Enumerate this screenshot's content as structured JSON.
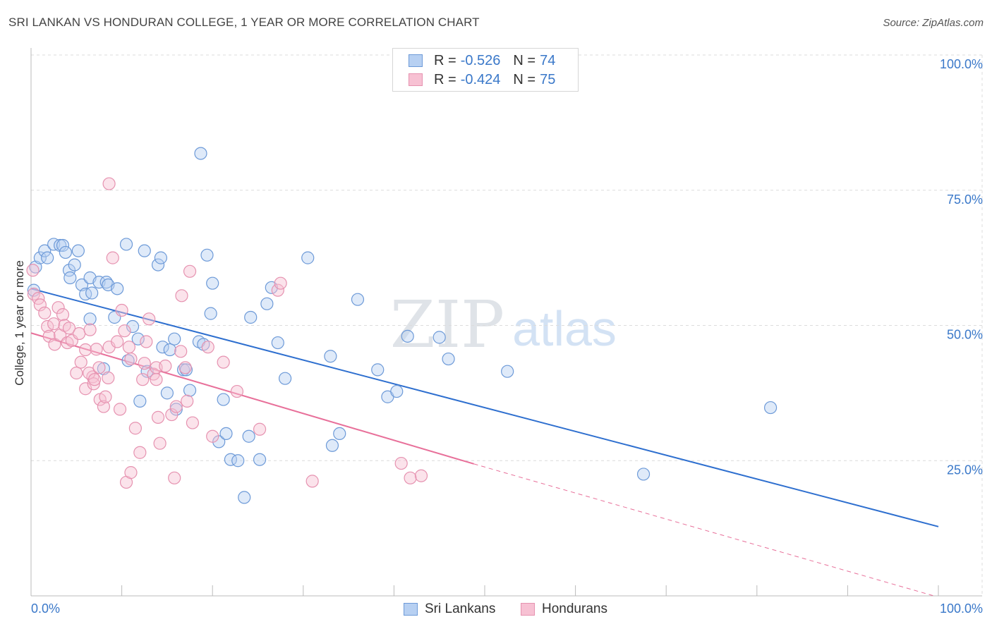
{
  "header": {
    "title": "SRI LANKAN VS HONDURAN COLLEGE, 1 YEAR OR MORE CORRELATION CHART",
    "source": "Source: ZipAtlas.com"
  },
  "watermark": {
    "zip": "ZIP",
    "atlas": "atlas"
  },
  "legend": {
    "r_label": "R =",
    "n_label": "N =",
    "series": [
      {
        "name": "Sri Lankans",
        "r": "-0.526",
        "n": "74",
        "fill": "#b7d0f2",
        "stroke": "#6d9ad8"
      },
      {
        "name": "Hondurans",
        "r": "-0.424",
        "n": "75",
        "fill": "#f7c1d3",
        "stroke": "#e692b0"
      }
    ]
  },
  "chart_data": {
    "type": "scatter",
    "title": "SRI LANKAN VS HONDURAN COLLEGE, 1 YEAR OR MORE CORRELATION CHART",
    "xlabel": "",
    "ylabel": "College, 1 year or more",
    "xlim": [
      0,
      100
    ],
    "ylim": [
      0,
      100
    ],
    "x_tick_labels": {
      "left": "0.0%",
      "right": "100.0%"
    },
    "y_ticks": [
      {
        "value": 25,
        "label": "25.0%"
      },
      {
        "value": 50,
        "label": "50.0%"
      },
      {
        "value": 75,
        "label": "75.0%"
      },
      {
        "value": 100,
        "label": "100.0%"
      }
    ],
    "grid": true,
    "colors": {
      "blue": "#3a78c9",
      "blue_line": "#2e6fcf",
      "pink": "#e8709a",
      "tick_text": "#3a78c9"
    },
    "series": [
      {
        "name": "Sri Lankans",
        "trend": {
          "x0": 0,
          "y0": 56.8,
          "x1": 100,
          "y1": 12.8
        },
        "points": [
          [
            0.3,
            56.5
          ],
          [
            0.5,
            60.8
          ],
          [
            1,
            62.5
          ],
          [
            1.5,
            63.8
          ],
          [
            1.8,
            62.5
          ],
          [
            2.5,
            65
          ],
          [
            3.2,
            64.8
          ],
          [
            3.5,
            64.8
          ],
          [
            3.8,
            63.5
          ],
          [
            4.2,
            60.2
          ],
          [
            4.3,
            58.8
          ],
          [
            4.8,
            61.2
          ],
          [
            5.2,
            63.8
          ],
          [
            5.6,
            57.5
          ],
          [
            6,
            55.8
          ],
          [
            6.5,
            58.8
          ],
          [
            6.7,
            56
          ],
          [
            6.5,
            51.2
          ],
          [
            7.5,
            58
          ],
          [
            8.3,
            58
          ],
          [
            8.5,
            57.5
          ],
          [
            9.5,
            56.8
          ],
          [
            8,
            42
          ],
          [
            9.2,
            51.5
          ],
          [
            10.5,
            65
          ],
          [
            10.7,
            43.5
          ],
          [
            11.2,
            49.8
          ],
          [
            11.8,
            47.5
          ],
          [
            12,
            36
          ],
          [
            12.5,
            63.8
          ],
          [
            12.8,
            41.5
          ],
          [
            14,
            61.2
          ],
          [
            14.3,
            62.5
          ],
          [
            14.5,
            46
          ],
          [
            15,
            37.5
          ],
          [
            15.3,
            45.5
          ],
          [
            15.8,
            47.5
          ],
          [
            16,
            34.5
          ],
          [
            16.8,
            41.8
          ],
          [
            17.1,
            41.8
          ],
          [
            17.5,
            38
          ],
          [
            18.5,
            47
          ],
          [
            18.7,
            81.8
          ],
          [
            19,
            46.5
          ],
          [
            19.4,
            63
          ],
          [
            19.8,
            52.2
          ],
          [
            20,
            57.8
          ],
          [
            20.7,
            28.5
          ],
          [
            21.2,
            36.3
          ],
          [
            21.5,
            30
          ],
          [
            22,
            25.2
          ],
          [
            22.8,
            25
          ],
          [
            23.5,
            18.2
          ],
          [
            24,
            29.5
          ],
          [
            24.2,
            51.5
          ],
          [
            25.2,
            25.2
          ],
          [
            26,
            54
          ],
          [
            26.5,
            57
          ],
          [
            27.2,
            46.8
          ],
          [
            28,
            40.2
          ],
          [
            30.5,
            62.5
          ],
          [
            33,
            44.3
          ],
          [
            33.2,
            27.8
          ],
          [
            34,
            30
          ],
          [
            36,
            54.8
          ],
          [
            38.2,
            41.8
          ],
          [
            39.3,
            36.8
          ],
          [
            40.3,
            37.8
          ],
          [
            41.5,
            48
          ],
          [
            45,
            47.8
          ],
          [
            46,
            43.8
          ],
          [
            52.5,
            41.5
          ],
          [
            81.5,
            34.8
          ],
          [
            67.5,
            22.5
          ]
        ]
      },
      {
        "name": "Hondurans",
        "trend": {
          "x0": 0,
          "y0": 48.6,
          "x1": 48.8,
          "y1": 24.4,
          "dash_x1": 99.5,
          "dash_y1": 0
        },
        "points": [
          [
            0.2,
            60.2
          ],
          [
            0.3,
            55.8
          ],
          [
            0.8,
            55
          ],
          [
            1,
            53.8
          ],
          [
            1.5,
            52.3
          ],
          [
            1.8,
            49.8
          ],
          [
            2,
            48
          ],
          [
            2.5,
            50.3
          ],
          [
            2.6,
            46.5
          ],
          [
            3,
            53.3
          ],
          [
            3.2,
            48.2
          ],
          [
            3.5,
            52
          ],
          [
            3.7,
            50
          ],
          [
            4,
            46.8
          ],
          [
            4.5,
            47.2
          ],
          [
            4.2,
            49.5
          ],
          [
            5,
            41.2
          ],
          [
            5.3,
            48.5
          ],
          [
            5.5,
            43.2
          ],
          [
            6,
            45.5
          ],
          [
            6,
            38.3
          ],
          [
            6.5,
            49.2
          ],
          [
            6.8,
            40.5
          ],
          [
            6.4,
            41.2
          ],
          [
            6.9,
            39.2
          ],
          [
            7,
            40
          ],
          [
            7.2,
            45.6
          ],
          [
            7.5,
            42.2
          ],
          [
            7.6,
            36.3
          ],
          [
            8,
            35
          ],
          [
            8.2,
            36.8
          ],
          [
            8.5,
            40.3
          ],
          [
            8.6,
            46
          ],
          [
            8.6,
            76.2
          ],
          [
            9,
            62.5
          ],
          [
            9.5,
            47
          ],
          [
            9.8,
            34.5
          ],
          [
            10,
            52.8
          ],
          [
            10.3,
            49
          ],
          [
            10.8,
            46
          ],
          [
            11,
            43.8
          ],
          [
            10.5,
            21
          ],
          [
            11,
            22.8
          ],
          [
            11.5,
            31
          ],
          [
            12,
            26.5
          ],
          [
            12.3,
            40
          ],
          [
            12.5,
            43
          ],
          [
            12.7,
            47
          ],
          [
            13,
            51.2
          ],
          [
            13.5,
            41
          ],
          [
            13.8,
            40
          ],
          [
            13.8,
            42.2
          ],
          [
            14,
            33
          ],
          [
            14.2,
            28.2
          ],
          [
            14.8,
            42.5
          ],
          [
            15.5,
            33.5
          ],
          [
            15.8,
            21.8
          ],
          [
            16,
            35
          ],
          [
            16.5,
            45.2
          ],
          [
            16.6,
            55.5
          ],
          [
            17,
            42.2
          ],
          [
            17.2,
            36
          ],
          [
            17.5,
            60
          ],
          [
            17.8,
            32
          ],
          [
            19.5,
            46
          ],
          [
            20,
            29.5
          ],
          [
            21.2,
            43.2
          ],
          [
            22.7,
            37.8
          ],
          [
            25.2,
            30.8
          ],
          [
            27.2,
            56.5
          ],
          [
            27.5,
            57.8
          ],
          [
            31,
            21.2
          ],
          [
            40.8,
            24.5
          ],
          [
            41.8,
            21.8
          ],
          [
            43,
            22.2
          ]
        ]
      }
    ]
  }
}
